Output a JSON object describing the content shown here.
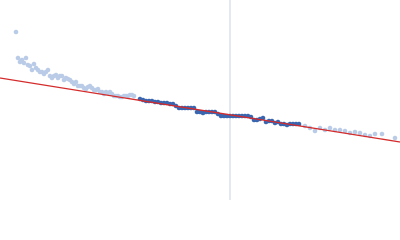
{
  "chart_data": {
    "type": "scatter",
    "xlim": [
      0,
      400
    ],
    "ylim": [
      200,
      0
    ],
    "vline": {
      "x": 230,
      "color": "#c8d2e4"
    },
    "fit_line": {
      "color": "#d42a2a",
      "x": [
        0,
        400
      ],
      "values": [
        78,
        142
      ]
    },
    "series": [
      {
        "color": "#b9cbe6",
        "x": [
          16,
          18,
          20,
          22,
          24,
          26,
          28,
          30,
          32,
          34,
          36,
          38,
          40,
          42,
          44,
          46,
          48,
          50,
          52,
          54,
          56,
          58,
          60,
          62,
          64,
          66,
          68,
          70,
          72,
          74,
          76,
          78,
          80,
          82,
          84,
          86,
          88,
          90,
          92,
          94,
          96,
          98,
          100,
          102,
          104,
          106,
          108,
          110,
          112,
          114,
          116,
          118,
          120,
          122,
          124,
          126,
          128,
          130,
          132,
          134
        ],
        "values": [
          32,
          58,
          62,
          60,
          63,
          58,
          65,
          66,
          70,
          64,
          68,
          70,
          72,
          72,
          74,
          72,
          70,
          76,
          78,
          76,
          75,
          78,
          76,
          76,
          80,
          78,
          79,
          80,
          82,
          84,
          82,
          86,
          86,
          86,
          88,
          89,
          87,
          86,
          88,
          90,
          90,
          89,
          92,
          92,
          94,
          92,
          93,
          92,
          94,
          96,
          96,
          96,
          97,
          97,
          96,
          96,
          96,
          95,
          95,
          96
        ]
      },
      {
        "color": "#3a66b0",
        "x": [
          140,
          143,
          146,
          149,
          152,
          155,
          158,
          161,
          164,
          167,
          170,
          173,
          176,
          179,
          182,
          185,
          188,
          191,
          194,
          197,
          200,
          203,
          206,
          209,
          212,
          215,
          218,
          221,
          224,
          227,
          230,
          233,
          236,
          239,
          242,
          245,
          248,
          251,
          254,
          257,
          260,
          263,
          266,
          269,
          272,
          275,
          278,
          281,
          284,
          287,
          290,
          293,
          296,
          299
        ],
        "values": [
          99,
          100,
          101,
          101,
          101,
          102,
          102,
          103,
          103,
          103,
          104,
          104,
          106,
          108,
          108,
          108,
          108,
          108,
          108,
          112,
          112,
          113,
          112,
          112,
          112,
          112,
          114,
          116,
          116,
          116,
          116,
          116,
          116,
          116,
          116,
          116,
          116,
          117,
          120,
          120,
          119,
          118,
          122,
          121,
          121,
          123,
          122,
          124,
          124,
          125,
          124,
          124,
          124,
          124
        ]
      },
      {
        "color": "#b9cbe6",
        "x": [
          305,
          310,
          315,
          320,
          325,
          330,
          335,
          340,
          345,
          350,
          355,
          360,
          365,
          370,
          375,
          382,
          395
        ],
        "values": [
          126,
          128,
          131,
          128,
          130,
          128,
          130,
          130,
          131,
          133,
          132,
          133,
          135,
          136,
          134,
          134,
          138
        ]
      }
    ]
  }
}
